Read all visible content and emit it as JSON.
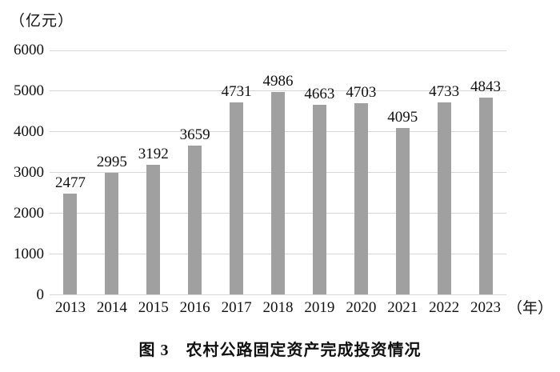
{
  "figure": {
    "unit_label": "（亿元）",
    "x_unit_label": "（年）",
    "caption": "图 3　农村公路固定资产完成投资情况"
  },
  "chart_data": {
    "type": "bar",
    "title": "图 3　农村公路固定资产完成投资情况",
    "ylabel": "（亿元）",
    "xlabel": "（年）",
    "categories": [
      "2013",
      "2014",
      "2015",
      "2016",
      "2017",
      "2018",
      "2019",
      "2020",
      "2021",
      "2022",
      "2023"
    ],
    "values": [
      2477,
      2995,
      3192,
      3659,
      4731,
      4986,
      4663,
      4703,
      4095,
      4733,
      4843
    ],
    "ylim": [
      0,
      6000
    ],
    "ytick_step": 1000,
    "yticks": [
      0,
      1000,
      2000,
      3000,
      4000,
      5000,
      6000
    ],
    "grid": true,
    "legend_position": "none",
    "data_labels": true,
    "colors": {
      "bar": "#a0a0a0",
      "gridline": "#d6d6d6",
      "text": "#111111",
      "background": "#ffffff"
    }
  }
}
